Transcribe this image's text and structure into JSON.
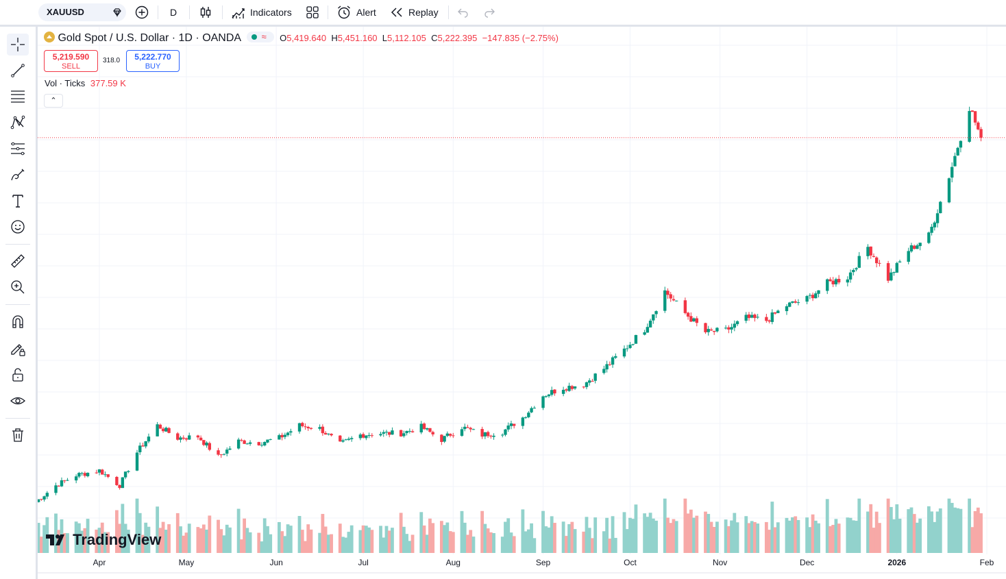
{
  "toolbar": {
    "symbol": "XAUUSD",
    "interval": "D",
    "indicators_label": "Indicators",
    "alert_label": "Alert",
    "replay_label": "Replay"
  },
  "legend": {
    "title": "Gold Spot / U.S. Dollar · 1D · OANDA",
    "o_label": "O",
    "o_value": "5,419.640",
    "h_label": "H",
    "h_value": "5,451.160",
    "l_label": "L",
    "l_value": "5,112.105",
    "c_label": "C",
    "c_value": "5,222.395",
    "change": "−147.835 (−2.75%)"
  },
  "trade": {
    "sell_price": "5,219.590",
    "sell_label": "SELL",
    "spread": "318.0",
    "buy_price": "5,222.770",
    "buy_label": "BUY"
  },
  "volume": {
    "label": "Vol · Ticks",
    "value": "377.59 K"
  },
  "logo_text": "TradingView",
  "colors": {
    "up": "#089981",
    "down": "#f23645",
    "vol_up": "#92d2cc",
    "vol_down": "#f7a9a7",
    "accent": "#2962ff"
  },
  "chart_data": {
    "type": "candlestick",
    "symbol": "XAUUSD",
    "interval": "1D",
    "x_tick_labels": [
      "Apr",
      "May",
      "Jun",
      "Jul",
      "Aug",
      "Sep",
      "Oct",
      "Nov",
      "Dec",
      "2026",
      "Feb"
    ],
    "x_ticks": [
      {
        "label": "Apr",
        "date": "2025-04-01"
      },
      {
        "label": "May",
        "date": "2025-05-01"
      },
      {
        "label": "Jun",
        "date": "2025-06-01"
      },
      {
        "label": "Jul",
        "date": "2025-07-01"
      },
      {
        "label": "Aug",
        "date": "2025-08-01"
      },
      {
        "label": "Sep",
        "date": "2025-09-01"
      },
      {
        "label": "Oct",
        "date": "2025-10-01"
      },
      {
        "label": "Nov",
        "date": "2025-11-01"
      },
      {
        "label": "Dec",
        "date": "2025-12-01"
      },
      {
        "label": "2026",
        "date": "2026-01-01"
      },
      {
        "label": "Feb",
        "date": "2026-02-01"
      }
    ],
    "approx_price_range": [
      2960,
      5600
    ],
    "last_price": 5222.395,
    "last_bar_volume": "377.59 K",
    "close_series": [
      {
        "date": "2025-03-10",
        "close": 2915
      },
      {
        "date": "2025-03-17",
        "close": 3020
      },
      {
        "date": "2025-03-24",
        "close": 3085
      },
      {
        "date": "2025-04-01",
        "close": 3115
      },
      {
        "date": "2025-04-08",
        "close": 3020
      },
      {
        "date": "2025-04-14",
        "close": 3230
      },
      {
        "date": "2025-04-21",
        "close": 3400
      },
      {
        "date": "2025-04-28",
        "close": 3320
      },
      {
        "date": "2025-05-05",
        "close": 3330
      },
      {
        "date": "2025-05-12",
        "close": 3200
      },
      {
        "date": "2025-05-19",
        "close": 3300
      },
      {
        "date": "2025-05-26",
        "close": 3290
      },
      {
        "date": "2025-06-02",
        "close": 3320
      },
      {
        "date": "2025-06-09",
        "close": 3400
      },
      {
        "date": "2025-06-16",
        "close": 3380
      },
      {
        "date": "2025-06-23",
        "close": 3280
      },
      {
        "date": "2025-06-30",
        "close": 3340
      },
      {
        "date": "2025-07-07",
        "close": 3350
      },
      {
        "date": "2025-07-14",
        "close": 3350
      },
      {
        "date": "2025-07-21",
        "close": 3390
      },
      {
        "date": "2025-07-28",
        "close": 3310
      },
      {
        "date": "2025-08-04",
        "close": 3390
      },
      {
        "date": "2025-08-11",
        "close": 3340
      },
      {
        "date": "2025-08-18",
        "close": 3360
      },
      {
        "date": "2025-08-25",
        "close": 3450
      },
      {
        "date": "2025-09-01",
        "close": 3590
      },
      {
        "date": "2025-09-08",
        "close": 3640
      },
      {
        "date": "2025-09-15",
        "close": 3660
      },
      {
        "date": "2025-09-22",
        "close": 3760
      },
      {
        "date": "2025-09-29",
        "close": 3880
      },
      {
        "date": "2025-10-06",
        "close": 4010
      },
      {
        "date": "2025-10-13",
        "close": 4250
      },
      {
        "date": "2025-10-20",
        "close": 4110
      },
      {
        "date": "2025-10-27",
        "close": 3990
      },
      {
        "date": "2025-11-03",
        "close": 4000
      },
      {
        "date": "2025-11-10",
        "close": 4080
      },
      {
        "date": "2025-11-17",
        "close": 4065
      },
      {
        "date": "2025-11-24",
        "close": 4160
      },
      {
        "date": "2025-12-01",
        "close": 4200
      },
      {
        "date": "2025-12-08",
        "close": 4300
      },
      {
        "date": "2025-12-15",
        "close": 4340
      },
      {
        "date": "2025-12-22",
        "close": 4530
      },
      {
        "date": "2025-12-29",
        "close": 4330
      },
      {
        "date": "2026-01-05",
        "close": 4510
      },
      {
        "date": "2026-01-12",
        "close": 4600
      },
      {
        "date": "2026-01-19",
        "close": 4980
      },
      {
        "date": "2026-01-26",
        "close": 5420
      },
      {
        "date": "2026-01-30",
        "close": 5222
      }
    ]
  }
}
